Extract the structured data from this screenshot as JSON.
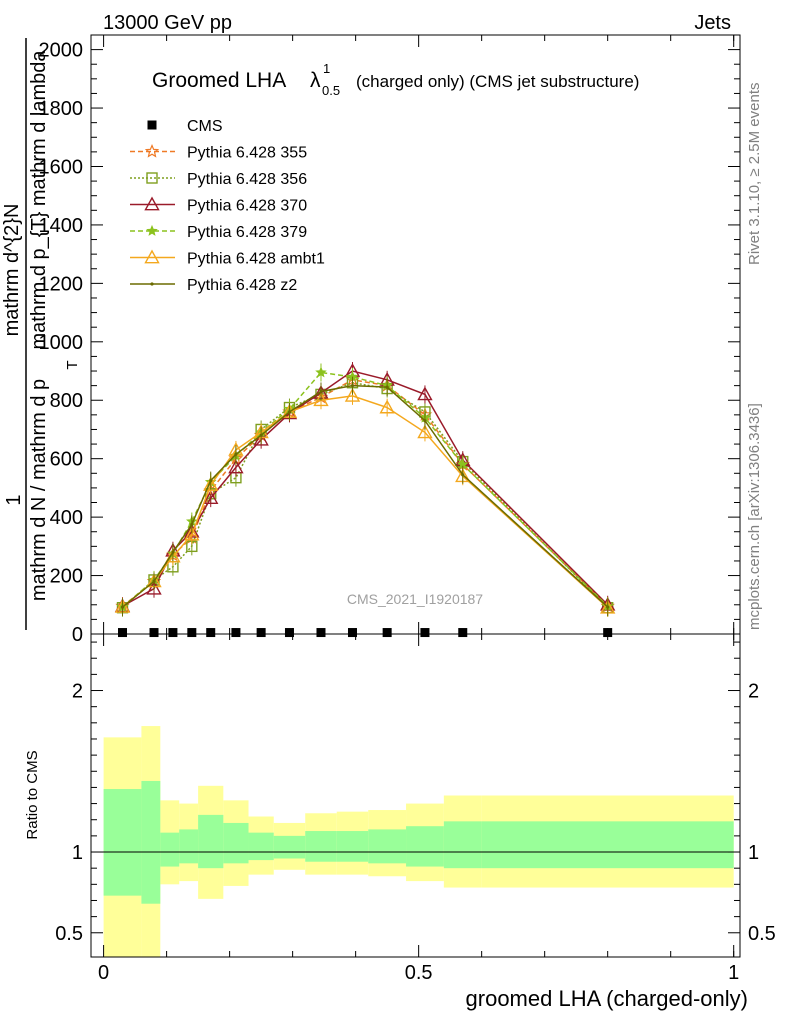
{
  "header": {
    "left": "13000 GeV pp",
    "right": "Jets"
  },
  "side": {
    "rivet": "Rivet 3.1.10, ≥ 2.5M events",
    "mcplots": "mcplots.cern.ch [arXiv:1306.3436]"
  },
  "watermark": "CMS_2021_I1920187",
  "chart_data": {
    "type": "line",
    "title": {
      "main": "Groomed LHA",
      "lambda": "λ",
      "sup": "1",
      "sub": "0.5",
      "rest": "(charged only) (CMS jet substructure)"
    },
    "ylabel": {
      "one": "1",
      "num_top": "mathrm d^{2}N",
      "num_bottom": "mathrm d p_{T} mathrm d lambda",
      "den_top": "mathrm d N / mathrm d p",
      "den_sub": "T"
    },
    "xlabel": "groomed LHA (charged-only)",
    "ratio_ylabel": "Ratio to CMS",
    "xlim": [
      -0.02,
      1.01
    ],
    "ylim": [
      0,
      2050
    ],
    "ratio_ylim": [
      0.35,
      2.35
    ],
    "x_ticks": [
      {
        "v": 0,
        "label": "0"
      },
      {
        "v": 0.5,
        "label": "0.5"
      },
      {
        "v": 1,
        "label": "1"
      }
    ],
    "y_ticks": [
      {
        "v": 0,
        "label": "0"
      },
      {
        "v": 200,
        "label": "200"
      },
      {
        "v": 400,
        "label": "400"
      },
      {
        "v": 600,
        "label": "600"
      },
      {
        "v": 800,
        "label": "800"
      },
      {
        "v": 1000,
        "label": "1000"
      },
      {
        "v": 1200,
        "label": "1200"
      },
      {
        "v": 1400,
        "label": "1400"
      },
      {
        "v": 1600,
        "label": "1600"
      },
      {
        "v": 1800,
        "label": "1800"
      },
      {
        "v": 2000,
        "label": "2000"
      }
    ],
    "ratio_ticks": [
      {
        "v": 0.5,
        "label": "0.5"
      },
      {
        "v": 1,
        "label": "1"
      },
      {
        "v": 2,
        "label": "2"
      }
    ],
    "x": [
      0.03,
      0.08,
      0.11,
      0.14,
      0.17,
      0.21,
      0.25,
      0.295,
      0.345,
      0.395,
      0.45,
      0.51,
      0.57,
      0.8
    ],
    "edges": [
      0.0,
      0.06,
      0.09,
      0.12,
      0.15,
      0.19,
      0.23,
      0.27,
      0.32,
      0.37,
      0.42,
      0.48,
      0.54,
      0.6,
      1.0
    ],
    "cms": [
      5,
      5,
      5,
      5,
      5,
      5,
      5,
      5,
      5,
      5,
      5,
      5,
      5,
      5
    ],
    "series": [
      {
        "name": "Pythia 6.428 355",
        "color": "#ef7a26",
        "dash": "5,3",
        "marker": "star",
        "values": [
          95,
          180,
          270,
          330,
          490,
          600,
          680,
          760,
          810,
          870,
          850,
          750,
          580,
          95
        ]
      },
      {
        "name": "Pythia 6.428 356",
        "color": "#7f9f1f",
        "dash": "2,2",
        "marker": "square",
        "values": [
          90,
          185,
          230,
          300,
          480,
          535,
          700,
          775,
          820,
          860,
          840,
          760,
          590,
          90
        ]
      },
      {
        "name": "Pythia 6.428 370",
        "color": "#9a1b2a",
        "dash": "",
        "marker": "triangle",
        "values": [
          95,
          155,
          285,
          350,
          465,
          570,
          665,
          755,
          825,
          900,
          870,
          820,
          595,
          100
        ]
      },
      {
        "name": "Pythia 6.428 379",
        "color": "#8cc21e",
        "dash": "5,3",
        "marker": "smallstar",
        "values": [
          92,
          185,
          275,
          385,
          520,
          610,
          690,
          770,
          895,
          880,
          850,
          740,
          580,
          95
        ]
      },
      {
        "name": "Pythia 6.428 ambt1",
        "color": "#f4a81e",
        "dash": "",
        "marker": "triangle",
        "values": [
          93,
          180,
          265,
          340,
          510,
          630,
          690,
          760,
          800,
          815,
          775,
          690,
          540,
          90
        ]
      },
      {
        "name": "Pythia 6.428 z2",
        "color": "#6b6b00",
        "dash": "",
        "marker": "dot",
        "values": [
          92,
          180,
          280,
          375,
          525,
          615,
          680,
          760,
          830,
          850,
          845,
          730,
          545,
          92
        ]
      }
    ],
    "ratio_band": {
      "inner_lo": [
        0.73,
        0.68,
        0.91,
        0.93,
        0.9,
        0.93,
        0.95,
        0.96,
        0.94,
        0.94,
        0.93,
        0.91,
        0.9,
        0.9
      ],
      "inner_hi": [
        1.39,
        1.44,
        1.12,
        1.14,
        1.23,
        1.18,
        1.12,
        1.1,
        1.13,
        1.13,
        1.14,
        1.16,
        1.19,
        1.19
      ],
      "outer_lo": [
        0.35,
        0.35,
        0.8,
        0.82,
        0.71,
        0.79,
        0.86,
        0.89,
        0.86,
        0.86,
        0.85,
        0.82,
        0.78,
        0.78
      ],
      "outer_hi": [
        1.71,
        1.78,
        1.32,
        1.3,
        1.41,
        1.32,
        1.22,
        1.18,
        1.24,
        1.25,
        1.26,
        1.3,
        1.35,
        1.35
      ]
    }
  }
}
